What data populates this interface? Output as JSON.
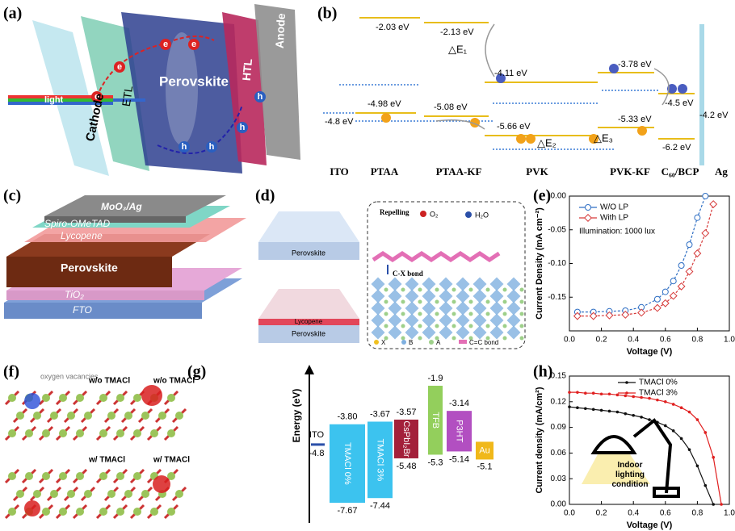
{
  "panel_labels": [
    "(a)",
    "(b)",
    "(c)",
    "(d)",
    "(e)",
    "(f)",
    "(g)",
    "(h)"
  ],
  "a": {
    "layers": [
      "Cathode",
      "ETL",
      "Perovskite",
      "HTL",
      "Anode"
    ],
    "light": "light",
    "electron_labels": [
      "e",
      "e",
      "e",
      "e"
    ],
    "hole_labels": [
      "h",
      "h",
      "h",
      "h"
    ]
  },
  "b": {
    "levels": [
      "-2.03 eV",
      "-2.13 eV",
      "-4.11 eV",
      "-3.78 eV",
      "-4.98 eV",
      "-5.08 eV",
      "-4.8 eV",
      "-5.66 eV",
      "-5.33 eV",
      "-4.5 eV",
      "-4.2 eV",
      "-6.2 eV"
    ],
    "offsets": [
      "△E₁",
      "△E₂",
      "△E₃"
    ],
    "layers": [
      "ITO",
      "PTAA",
      "PTAA-KF",
      "PVK",
      "PVK-KF",
      "C₆₀/BCP",
      "Ag"
    ]
  },
  "c": {
    "layers": [
      "MoO₃/Ag",
      "Spiro-OMeTAD",
      "Lycopene",
      "Perovskite",
      "TiO₂",
      "FTO"
    ]
  },
  "d": {
    "top_slab": "Perovskite",
    "bottom_slab_layers": [
      "Lycopene",
      "Perovskite"
    ],
    "repelling": "Repelling",
    "o2": "O₂",
    "h2o": "H₂O",
    "bond": "C-X bond",
    "legend": [
      "X",
      "B",
      "A",
      "C=C bond"
    ]
  },
  "f": {
    "vacancy": "oxygen vacancies",
    "quadrants": [
      "w/o TMACl",
      "w/o TMACl",
      "w/ TMACl",
      "w/ TMACl"
    ]
  },
  "g": {
    "axis_label": "Energy (eV)",
    "levels": [
      {
        "name": "ITO",
        "top": "-4.8",
        "color": "#2a4fa8"
      },
      {
        "name": "TMACl 0%",
        "top": "-3.80",
        "bottom": "-7.67",
        "color": "#3cc3ef"
      },
      {
        "name": "TMACl 3%",
        "top": "-3.67",
        "bottom": "-7.44",
        "color": "#3cc3ef"
      },
      {
        "name": "CsPbI₂Br",
        "top": "-3.57",
        "bottom": "-5.48",
        "color": "#a3203a"
      },
      {
        "name": "TFB",
        "top": "-1.9",
        "bottom": "-5.3",
        "color": "#93cf5c"
      },
      {
        "name": "P3HT",
        "top": "-3.14",
        "bottom": "-5.14",
        "color": "#b24fc1"
      },
      {
        "name": "Au",
        "top": "-5.1",
        "color": "#f0b81a"
      }
    ]
  },
  "chart_data": [
    {
      "type": "line",
      "xlabel": "Voltage (V)",
      "ylabel": "Current Density (mA cm⁻²)",
      "annotation": "Illumination: 1000 lux",
      "legend": "upper left",
      "x": [
        0.05,
        0.15,
        0.25,
        0.35,
        0.45,
        0.55,
        0.6,
        0.65,
        0.7,
        0.75,
        0.8,
        0.85,
        0.9
      ],
      "series": [
        {
          "name": "W/O LP",
          "color": "#2f6fc4",
          "marker": "circle",
          "values": [
            -0.172,
            -0.172,
            -0.171,
            -0.17,
            -0.165,
            -0.153,
            -0.142,
            -0.126,
            -0.103,
            -0.072,
            -0.032,
            0.0,
            null
          ]
        },
        {
          "name": "With LP",
          "color": "#d63a3a",
          "marker": "diamond",
          "values": [
            -0.178,
            -0.178,
            -0.177,
            -0.176,
            -0.173,
            -0.166,
            -0.159,
            -0.148,
            -0.134,
            -0.112,
            -0.085,
            -0.055,
            -0.012
          ]
        }
      ],
      "xlim": [
        0,
        1
      ],
      "xticks": [
        {
          "value": 0,
          "label": "0.0"
        },
        {
          "value": 0.2,
          "label": "0.2"
        },
        {
          "value": 0.4,
          "label": "0.4"
        },
        {
          "value": 0.6,
          "label": "0.6"
        },
        {
          "value": 0.8,
          "label": "0.8"
        },
        {
          "value": 1,
          "label": "1.0"
        }
      ],
      "ylim": [
        -0.2,
        0
      ],
      "yticks": [
        {
          "value": 0,
          "label": "0.00"
        },
        {
          "value": -0.05,
          "label": "-0.05"
        },
        {
          "value": -0.1,
          "label": "-0.10"
        },
        {
          "value": -0.15,
          "label": "-0.15"
        }
      ]
    },
    {
      "type": "line",
      "xlabel": "Voltage (V)",
      "ylabel": "Current density (mA/cm²)",
      "annotation": "Indoor lighting condition",
      "legend": "upper center",
      "x": [
        0,
        0.05,
        0.1,
        0.15,
        0.2,
        0.25,
        0.3,
        0.35,
        0.4,
        0.45,
        0.5,
        0.55,
        0.6,
        0.65,
        0.7,
        0.75,
        0.8,
        0.85,
        0.9,
        0.95
      ],
      "series": [
        {
          "name": "TMACl 0%",
          "color": "#111111",
          "marker": "dot",
          "values": [
            0.114,
            0.113,
            0.112,
            0.111,
            0.11,
            0.109,
            0.108,
            0.106,
            0.104,
            0.102,
            0.099,
            0.096,
            0.092,
            0.086,
            0.077,
            0.064,
            0.045,
            0.022,
            0.0,
            null
          ]
        },
        {
          "name": "TMACl 3%",
          "color": "#e02020",
          "marker": "dot",
          "values": [
            0.131,
            0.131,
            0.13,
            0.13,
            0.129,
            0.129,
            0.128,
            0.127,
            0.126,
            0.125,
            0.124,
            0.122,
            0.12,
            0.117,
            0.113,
            0.108,
            0.099,
            0.084,
            0.055,
            0.0
          ]
        }
      ],
      "xlim": [
        0,
        1
      ],
      "xticks": [
        {
          "value": 0,
          "label": "0.0"
        },
        {
          "value": 0.2,
          "label": "0.2"
        },
        {
          "value": 0.4,
          "label": "0.4"
        },
        {
          "value": 0.6,
          "label": "0.6"
        },
        {
          "value": 0.8,
          "label": "0.8"
        },
        {
          "value": 1,
          "label": "1.0"
        }
      ],
      "ylim": [
        0,
        0.15
      ],
      "yticks": [
        {
          "value": 0,
          "label": "0.00"
        },
        {
          "value": 0.03,
          "label": "0.03"
        },
        {
          "value": 0.06,
          "label": "0.06"
        },
        {
          "value": 0.09,
          "label": "0.09"
        },
        {
          "value": 0.12,
          "label": "0.12"
        },
        {
          "value": 0.15,
          "label": "0.15"
        }
      ]
    }
  ]
}
